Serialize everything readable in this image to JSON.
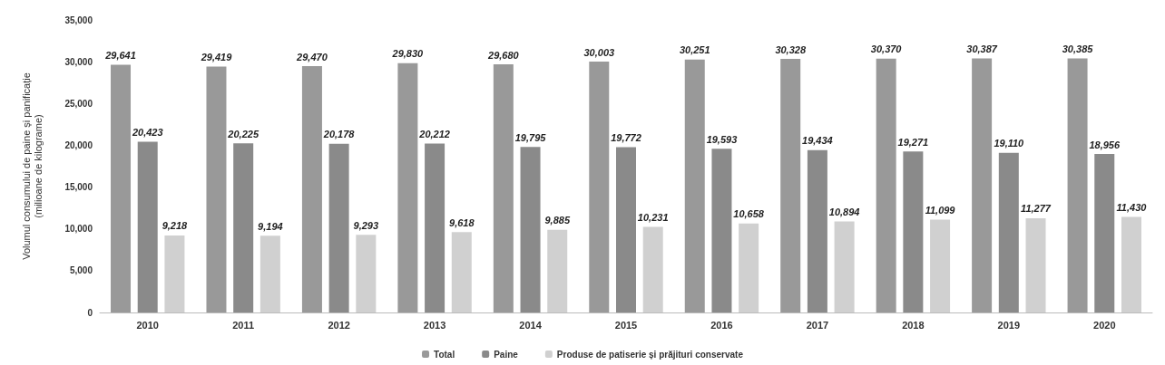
{
  "chart_data": {
    "type": "bar",
    "ylabel": "Volumul consumului de paine și panificație\n(milioane de kilograme)",
    "categories": [
      "2010",
      "2011",
      "2012",
      "2013",
      "2014",
      "2015",
      "2016",
      "2017",
      "2018",
      "2019",
      "2020"
    ],
    "series": [
      {
        "name": "Total",
        "color": "#999999",
        "values": [
          29641,
          29419,
          29470,
          29830,
          29680,
          30003,
          30251,
          30328,
          30370,
          30387,
          30385
        ],
        "value_labels": [
          "29,641",
          "29,419",
          "29,470",
          "29,830",
          "29,680",
          "30,003",
          "30,251",
          "30,328",
          "30,370",
          "30,387",
          "30,385"
        ]
      },
      {
        "name": "Paine",
        "color": "#8a8a8a",
        "values": [
          20423,
          20225,
          20178,
          20212,
          19795,
          19772,
          19593,
          19434,
          19271,
          19110,
          18956
        ],
        "value_labels": [
          "20,423",
          "20,225",
          "20,178",
          "20,212",
          "19,795",
          "19,772",
          "19,593",
          "19,434",
          "19,271",
          "19,110",
          "18,956"
        ]
      },
      {
        "name": "Produse de patiserie și prăjituri conservate",
        "color": "#d0d0d0",
        "values": [
          9218,
          9194,
          9293,
          9618,
          9885,
          10231,
          10658,
          10894,
          11099,
          11277,
          11430
        ],
        "value_labels": [
          "9,218",
          "9,194",
          "9,293",
          "9,618",
          "9,885",
          "10,231",
          "10,658",
          "10,894",
          "11,099",
          "11,277",
          "11,430"
        ]
      }
    ],
    "ylim": [
      0,
      35000
    ],
    "yticks": [
      {
        "value": 0,
        "label": "0"
      },
      {
        "value": 5000,
        "label": "5,000"
      },
      {
        "value": 10000,
        "label": "10,000"
      },
      {
        "value": 15000,
        "label": "15,000"
      },
      {
        "value": 20000,
        "label": "20,000"
      },
      {
        "value": 25000,
        "label": "25,000"
      },
      {
        "value": 30000,
        "label": "30,000"
      },
      {
        "value": 35000,
        "label": "35,000"
      }
    ],
    "grid": false,
    "legend": "bottom"
  }
}
